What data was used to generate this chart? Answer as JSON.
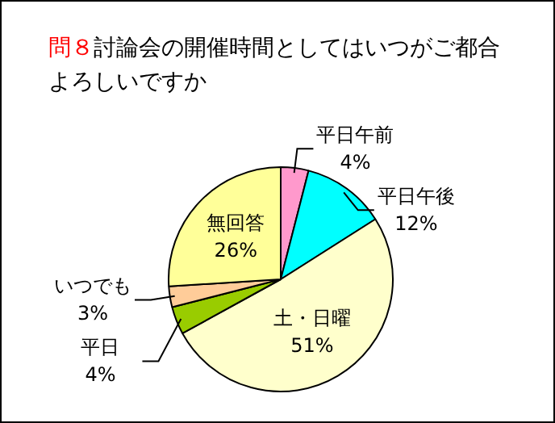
{
  "chart_data": {
    "type": "pie",
    "title": "問８討論会の開催時間としてはいつがご都合よろしいですか",
    "categories": [
      "平日午前",
      "平日午後",
      "土・日曜",
      "平日",
      "いつでも",
      "無回答"
    ],
    "values": [
      4,
      12,
      51,
      4,
      3,
      26
    ],
    "value_labels": [
      "4%",
      "12%",
      "51%",
      "4%",
      "3%",
      "26%"
    ],
    "colors": [
      "#ff99cc",
      "#00ffff",
      "#ffffcc",
      "#99cc00",
      "#ffcc99",
      "#ffff99"
    ]
  }
}
